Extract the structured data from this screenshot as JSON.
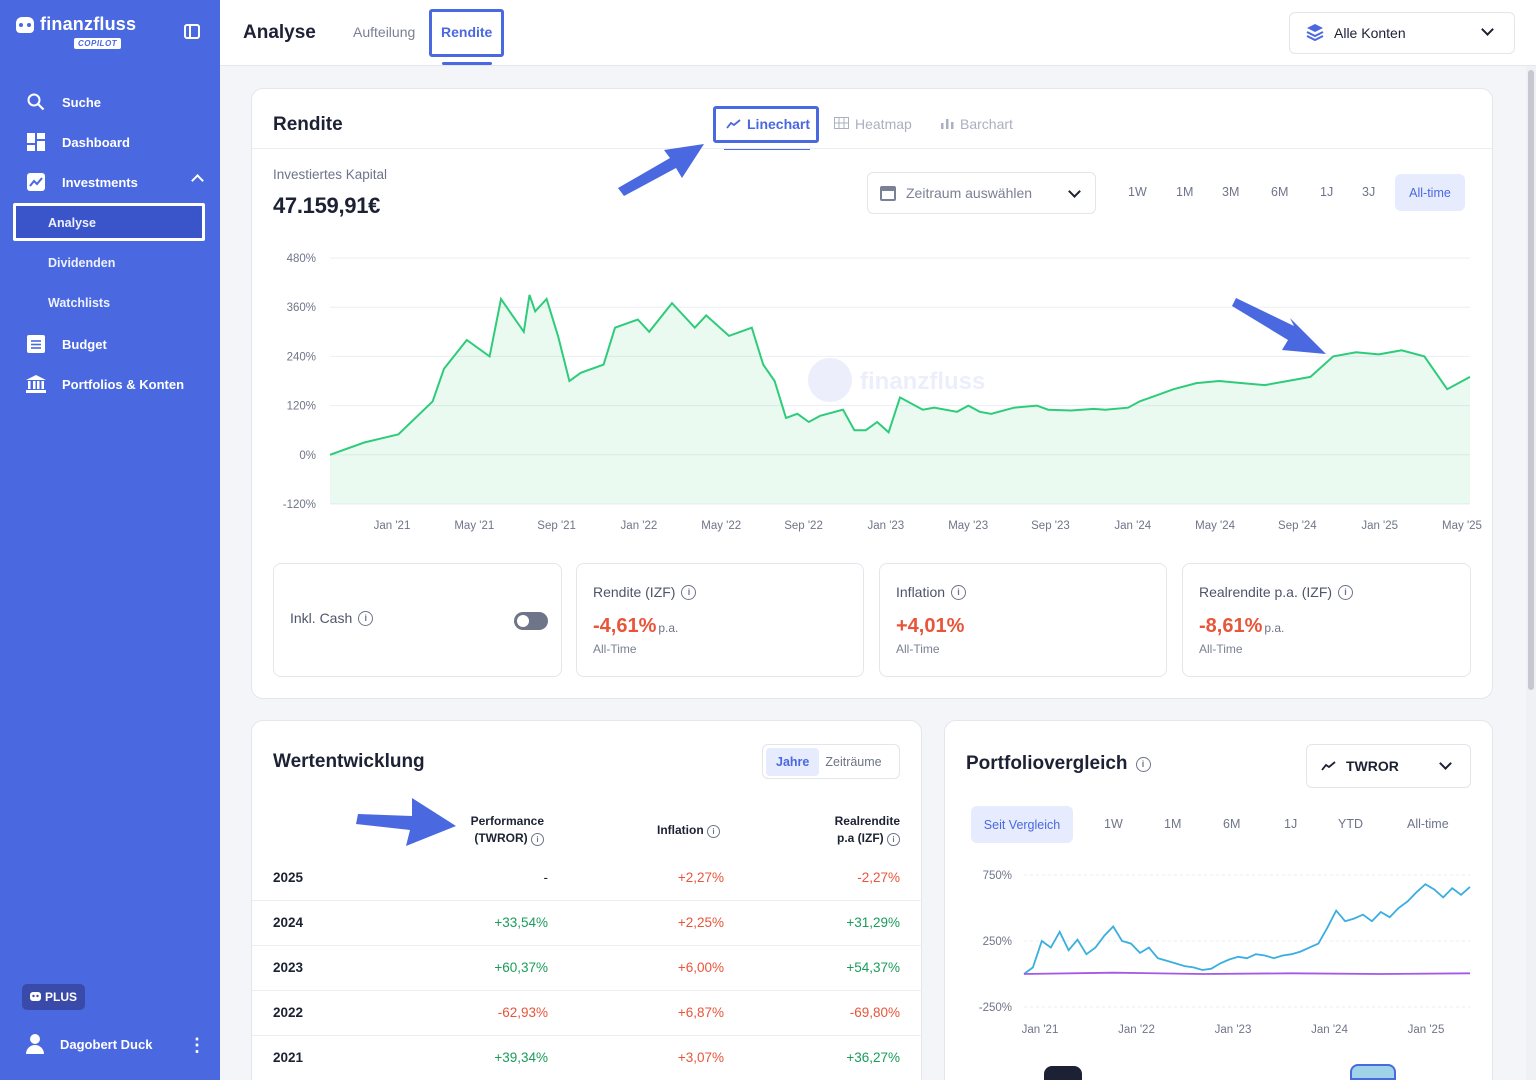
{
  "app": {
    "brand": "finanzfluss",
    "brand_sub": "COPILOT"
  },
  "sidebar": {
    "items": [
      {
        "label": "Suche",
        "icon": "search-icon"
      },
      {
        "label": "Dashboard",
        "icon": "dashboard-icon"
      },
      {
        "label": "Investments",
        "icon": "trend-icon"
      },
      {
        "label": "Budget",
        "icon": "list-icon"
      },
      {
        "label": "Portfolios & Konten",
        "icon": "bank-icon"
      }
    ],
    "sub_items": [
      "Analyse",
      "Dividenden",
      "Watchlists"
    ],
    "plan_badge": "PLUS",
    "user": "Dagobert Duck"
  },
  "header": {
    "title": "Analyse",
    "tabs": [
      "Aufteilung",
      "Rendite"
    ],
    "active_tab": "Rendite",
    "account_select": "Alle Konten"
  },
  "rendite": {
    "title": "Rendite",
    "chart_tabs": [
      "Linechart",
      "Heatmap",
      "Barchart"
    ],
    "kapital_label": "Investiertes Kapital",
    "kapital_value": "47.159,91€",
    "date_placeholder": "Zeitraum auswählen",
    "ranges": [
      "1W",
      "1M",
      "3M",
      "6M",
      "1J",
      "3J",
      "All-time"
    ],
    "active_range": "All-time",
    "watermark": "finanzfluss",
    "stats": {
      "cash_label": "Inkl. Cash",
      "cash_toggle": "off",
      "izf_label": "Rendite (IZF)",
      "izf_value": "-4,61%",
      "izf_unit": "p.a.",
      "izf_sub": "All-Time",
      "infl_label": "Inflation",
      "infl_value": "+4,01%",
      "infl_sub": "All-Time",
      "real_label": "Realrendite p.a. (IZF)",
      "real_value": "-8,61%",
      "real_unit": "p.a.",
      "real_sub": "All-Time"
    }
  },
  "chart_data": [
    {
      "type": "area",
      "ylim": [
        -120,
        480
      ],
      "y_ticks": [
        "480%",
        "360%",
        "240%",
        "120%",
        "0%",
        "-120%"
      ],
      "x_ticks": [
        "Jan '21",
        "May '21",
        "Sep '21",
        "Jan '22",
        "May '22",
        "Sep '22",
        "Jan '23",
        "May '23",
        "Sep '23",
        "Jan '24",
        "May '24",
        "Sep '24",
        "Jan '25",
        "May '25"
      ],
      "color": "#2ecc7a",
      "series": [
        {
          "x": [
            0,
            3,
            6,
            9,
            10,
            12,
            14,
            15,
            17,
            17.5,
            18,
            19,
            20,
            21,
            22,
            24,
            25,
            27,
            28,
            30,
            32,
            33,
            35,
            37,
            38,
            39,
            40,
            41,
            42,
            43,
            45,
            46,
            47,
            48,
            49,
            50,
            52,
            53,
            55,
            56,
            57,
            58,
            60,
            62,
            63,
            65,
            67,
            68,
            70,
            71,
            72,
            74,
            76,
            78,
            80,
            82,
            84,
            86,
            88,
            90,
            92,
            94,
            96,
            98,
            100
          ],
          "y": [
            0,
            30,
            50,
            130,
            210,
            280,
            240,
            380,
            300,
            390,
            350,
            380,
            290,
            180,
            200,
            220,
            310,
            330,
            300,
            370,
            310,
            340,
            290,
            310,
            220,
            180,
            90,
            100,
            80,
            95,
            110,
            60,
            60,
            80,
            55,
            140,
            110,
            115,
            105,
            120,
            105,
            100,
            115,
            120,
            110,
            108,
            112,
            110,
            115,
            130,
            140,
            160,
            175,
            180,
            175,
            170,
            180,
            190,
            240,
            250,
            245,
            255,
            240,
            160,
            190
          ]
        }
      ]
    },
    {
      "type": "line",
      "ylim": [
        -250,
        750
      ],
      "y_ticks": [
        "750%",
        "250%",
        "-250%"
      ],
      "x_ticks": [
        "Jan '21",
        "Jan '22",
        "Jan '23",
        "Jan '24",
        "Jan '25"
      ],
      "series": [
        {
          "color": "#3aaee0",
          "x": [
            0,
            2,
            4,
            6,
            8,
            10,
            12,
            14,
            16,
            18,
            20,
            22,
            24,
            26,
            28,
            30,
            32,
            34,
            36,
            38,
            40,
            42,
            44,
            46,
            48,
            50,
            52,
            54,
            56,
            58,
            60,
            62,
            64,
            66,
            68,
            70,
            72,
            74,
            76,
            78,
            80,
            82,
            84,
            86,
            88,
            90,
            92,
            94,
            96,
            98,
            100
          ],
          "y": [
            0,
            50,
            250,
            200,
            320,
            180,
            260,
            150,
            200,
            290,
            360,
            250,
            230,
            160,
            200,
            120,
            100,
            80,
            60,
            50,
            30,
            40,
            80,
            110,
            130,
            120,
            150,
            140,
            120,
            140,
            150,
            170,
            200,
            230,
            350,
            480,
            400,
            420,
            450,
            400,
            470,
            430,
            500,
            550,
            620,
            680,
            640,
            580,
            650,
            600,
            660
          ]
        },
        {
          "color": "#a259e6",
          "x": [
            0,
            20,
            40,
            60,
            80,
            100
          ],
          "y": [
            0,
            10,
            0,
            5,
            0,
            5
          ]
        }
      ]
    }
  ],
  "wert": {
    "title": "Wertentwicklung",
    "seg": [
      "Jahre",
      "Zeiträume"
    ],
    "active_seg": "Jahre",
    "headers": [
      "Performance",
      "(TWROR)",
      "Inflation",
      "Realrendite",
      "p.a (IZF)"
    ],
    "rows": [
      {
        "year": "2025",
        "perf": "-",
        "infl": "+2,27%",
        "real": "-2,27%",
        "perf_c": "neu",
        "real_c": "neg"
      },
      {
        "year": "2024",
        "perf": "+33,54%",
        "infl": "+2,25%",
        "real": "+31,29%",
        "perf_c": "pos",
        "real_c": "pos"
      },
      {
        "year": "2023",
        "perf": "+60,37%",
        "infl": "+6,00%",
        "real": "+54,37%",
        "perf_c": "pos",
        "real_c": "pos"
      },
      {
        "year": "2022",
        "perf": "-62,93%",
        "infl": "+6,87%",
        "real": "-69,80%",
        "perf_c": "neg",
        "real_c": "neg"
      },
      {
        "year": "2021",
        "perf": "+39,34%",
        "infl": "+3,07%",
        "real": "+36,27%",
        "perf_c": "pos",
        "real_c": "pos"
      }
    ]
  },
  "pv": {
    "title": "Portfoliovergleich",
    "metric": "TWROR",
    "ranges": [
      "Seit Vergleich",
      "1W",
      "1M",
      "6M",
      "1J",
      "YTD",
      "All-time"
    ],
    "active_range": "Seit Vergleich"
  },
  "colors": {
    "accent": "#4a68e0",
    "positive": "#1a9c5b",
    "negative": "#e8553a",
    "chart_line": "#2ecc7a"
  }
}
